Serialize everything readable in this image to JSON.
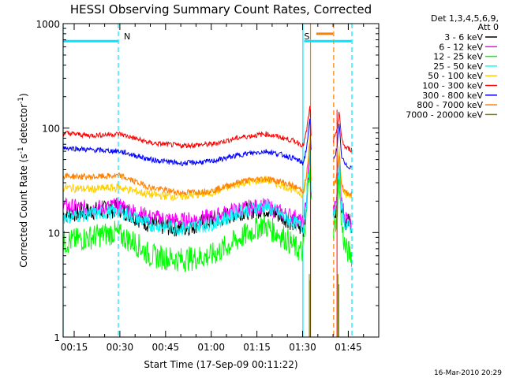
{
  "chart_data": {
    "type": "line",
    "title": "HESSI Observing Summary Count Rates, Corrected",
    "xlabel": "Start Time (17-Sep-09 00:11:22)",
    "ylabel_main": "Corrected Count Rate (s",
    "ylabel_sup1": "-1",
    "ylabel_mid": " detector",
    "ylabel_sup2": "-1",
    "ylabel_end": ")",
    "ylim": [
      1,
      1000
    ],
    "yscale": "log",
    "xlim_minutes": [
      11.37,
      115
    ],
    "x_ticks": [
      {
        "m": 15,
        "label": "00:15"
      },
      {
        "m": 30,
        "label": "00:30"
      },
      {
        "m": 45,
        "label": "00:45"
      },
      {
        "m": 60,
        "label": "01:00"
      },
      {
        "m": 75,
        "label": "01:15"
      },
      {
        "m": 90,
        "label": "01:30"
      },
      {
        "m": 105,
        "label": "01:45"
      }
    ],
    "y_ticks": [
      {
        "v": 1,
        "label": "1"
      },
      {
        "v": 10,
        "label": "10"
      },
      {
        "v": 100,
        "label": "100"
      },
      {
        "v": 1000,
        "label": "1000"
      }
    ],
    "legend_header": [
      "Det 1,3,4,5,6,9,",
      "Att 0"
    ],
    "legend_position": "right",
    "footer_stamp": "16-Mar-2010 20:29",
    "flags": [
      {
        "label": "N",
        "start": 11.37,
        "end": 29.5,
        "color": "#00e5ff"
      },
      {
        "label": "S",
        "start": 90.5,
        "end": 106,
        "color": "#00e5ff"
      },
      {
        "label": "",
        "start": 94.5,
        "end": 100,
        "color": "#ff8000"
      }
    ],
    "vlines": [
      {
        "m": 11.37,
        "color": "#00e5ff",
        "style": "solid"
      },
      {
        "m": 29.5,
        "color": "#00e5ff",
        "style": "dashed"
      },
      {
        "m": 90.1,
        "color": "#00e5ff",
        "style": "solid"
      },
      {
        "m": 92.6,
        "color": "#ff8000",
        "style": "solid"
      },
      {
        "m": 100.2,
        "color": "#ff8000",
        "style": "dashed"
      },
      {
        "m": 106.2,
        "color": "#00e5ff",
        "style": "dashed"
      }
    ],
    "series": [
      {
        "name": "3 - 6 keV",
        "color": "#000000",
        "points": [
          [
            11.4,
            15
          ],
          [
            20,
            16
          ],
          [
            30,
            17
          ],
          [
            40,
            12
          ],
          [
            50,
            11
          ],
          [
            60,
            13
          ],
          [
            70,
            16
          ],
          [
            78,
            17
          ],
          [
            84,
            14
          ],
          [
            88,
            12
          ],
          [
            90.2,
            10.5
          ],
          [
            91.2,
            18
          ],
          [
            92.4,
            60
          ],
          [
            92.8,
            18
          ],
          [
            100,
            15
          ],
          [
            101.2,
            18
          ],
          [
            102,
            50
          ],
          [
            102.7,
            18
          ],
          [
            104,
            13
          ],
          [
            106.2,
            12
          ]
        ]
      },
      {
        "name": "6 - 12 keV",
        "color": "#ff00ff",
        "points": [
          [
            11.4,
            18
          ],
          [
            20,
            17
          ],
          [
            30,
            18
          ],
          [
            40,
            14
          ],
          [
            50,
            13
          ],
          [
            60,
            14
          ],
          [
            70,
            17
          ],
          [
            78,
            18
          ],
          [
            84,
            15
          ],
          [
            88,
            14
          ],
          [
            90.2,
            12
          ],
          [
            91.2,
            20
          ],
          [
            92.4,
            70
          ],
          [
            92.8,
            20
          ],
          [
            100,
            16
          ],
          [
            101.2,
            20
          ],
          [
            102,
            55
          ],
          [
            102.7,
            20
          ],
          [
            104,
            14
          ],
          [
            106.2,
            13
          ]
        ]
      },
      {
        "name": "12 - 25 keV",
        "color": "#00ff00",
        "points": [
          [
            11.4,
            8
          ],
          [
            20,
            9
          ],
          [
            28,
            10
          ],
          [
            35,
            8
          ],
          [
            40,
            6
          ],
          [
            50,
            5.5
          ],
          [
            60,
            6
          ],
          [
            70,
            9
          ],
          [
            77,
            12
          ],
          [
            84,
            9
          ],
          [
            88,
            7
          ],
          [
            90.2,
            6.5
          ],
          [
            91.2,
            14
          ],
          [
            92.4,
            50
          ],
          [
            92.8,
            15
          ],
          [
            100,
            9
          ],
          [
            101.2,
            14
          ],
          [
            102,
            40
          ],
          [
            102.7,
            12
          ],
          [
            104,
            7
          ],
          [
            106.2,
            6
          ]
        ]
      },
      {
        "name": "25 - 50 keV",
        "color": "#00ffff",
        "points": [
          [
            11.4,
            14
          ],
          [
            20,
            15
          ],
          [
            30,
            16
          ],
          [
            40,
            12
          ],
          [
            50,
            11
          ],
          [
            60,
            12
          ],
          [
            70,
            16
          ],
          [
            78,
            18
          ],
          [
            84,
            14
          ],
          [
            88,
            12
          ],
          [
            90.2,
            11
          ],
          [
            91.2,
            19
          ],
          [
            92.4,
            65
          ],
          [
            92.8,
            19
          ],
          [
            100,
            14
          ],
          [
            101.2,
            19
          ],
          [
            102,
            50
          ],
          [
            102.7,
            18
          ],
          [
            104,
            12
          ],
          [
            106.2,
            11
          ]
        ]
      },
      {
        "name": "50 - 100 keV",
        "color": "#ffd000",
        "points": [
          [
            11.4,
            27
          ],
          [
            20,
            26
          ],
          [
            30,
            27
          ],
          [
            40,
            23
          ],
          [
            50,
            22
          ],
          [
            60,
            24
          ],
          [
            70,
            30
          ],
          [
            78,
            32
          ],
          [
            84,
            28
          ],
          [
            88,
            25
          ],
          [
            90.2,
            23
          ],
          [
            91.2,
            32
          ],
          [
            92.4,
            80
          ],
          [
            92.8,
            30
          ],
          [
            100,
            28
          ],
          [
            101.2,
            32
          ],
          [
            102,
            70
          ],
          [
            102.7,
            30
          ],
          [
            104,
            24
          ],
          [
            106.2,
            22
          ]
        ]
      },
      {
        "name": "100 - 300 keV",
        "color": "#ff0000",
        "points": [
          [
            11.4,
            90
          ],
          [
            20,
            85
          ],
          [
            30,
            88
          ],
          [
            40,
            72
          ],
          [
            50,
            68
          ],
          [
            60,
            70
          ],
          [
            70,
            82
          ],
          [
            78,
            88
          ],
          [
            84,
            80
          ],
          [
            88,
            74
          ],
          [
            90.2,
            68
          ],
          [
            91.2,
            90
          ],
          [
            92.4,
            160
          ],
          [
            92.8,
            80
          ],
          [
            100,
            74
          ],
          [
            101.2,
            90
          ],
          [
            102,
            150
          ],
          [
            102.7,
            80
          ],
          [
            104,
            65
          ],
          [
            106.2,
            62
          ]
        ]
      },
      {
        "name": "300 - 800 keV",
        "color": "#0000ff",
        "points": [
          [
            11.4,
            65
          ],
          [
            20,
            62
          ],
          [
            30,
            60
          ],
          [
            40,
            50
          ],
          [
            50,
            46
          ],
          [
            60,
            48
          ],
          [
            70,
            56
          ],
          [
            78,
            60
          ],
          [
            84,
            55
          ],
          [
            88,
            50
          ],
          [
            90.2,
            46
          ],
          [
            91.2,
            62
          ],
          [
            92.4,
            120
          ],
          [
            92.8,
            55
          ],
          [
            100,
            50
          ],
          [
            101.2,
            62
          ],
          [
            102,
            110
          ],
          [
            102.7,
            55
          ],
          [
            104,
            44
          ],
          [
            106.2,
            42
          ]
        ]
      },
      {
        "name": "800 - 7000 keV",
        "color": "#ff8000",
        "points": [
          [
            11.4,
            35
          ],
          [
            20,
            34
          ],
          [
            30,
            35
          ],
          [
            40,
            27
          ],
          [
            50,
            24
          ],
          [
            60,
            25
          ],
          [
            70,
            31
          ],
          [
            78,
            33
          ],
          [
            84,
            30
          ],
          [
            88,
            27
          ],
          [
            90.2,
            25
          ],
          [
            91.2,
            34
          ],
          [
            92.4,
            70
          ],
          [
            92.8,
            28
          ],
          [
            100,
            28
          ],
          [
            101.2,
            34
          ],
          [
            102,
            60
          ],
          [
            102.7,
            30
          ],
          [
            104,
            24
          ],
          [
            106.2,
            23
          ]
        ]
      },
      {
        "name": "7000 - 20000 keV",
        "color": "#808000",
        "points": [
          [
            92.2,
            4
          ],
          [
            92.5,
            3.5
          ],
          [
            101.6,
            4
          ],
          [
            101.9,
            3.2
          ]
        ]
      }
    ]
  }
}
